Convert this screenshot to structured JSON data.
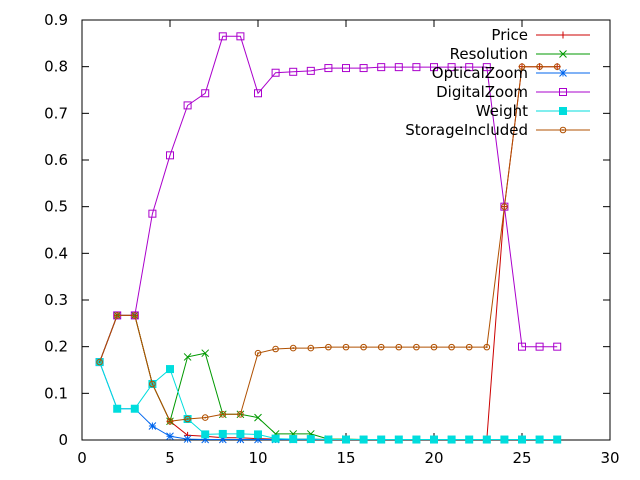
{
  "chart_data": {
    "type": "line",
    "title": "",
    "xlabel": "",
    "ylabel": "",
    "xlim": [
      0,
      30
    ],
    "ylim": [
      0,
      0.9
    ],
    "x_ticks": [
      "0",
      "5",
      "10",
      "15",
      "20",
      "25",
      "30"
    ],
    "y_ticks": [
      "0",
      "0.1",
      "0.2",
      "0.3",
      "0.4",
      "0.5",
      "0.6",
      "0.7",
      "0.8",
      "0.9"
    ],
    "grid": false,
    "legend_position": "top-right",
    "x": [
      1,
      2,
      3,
      4,
      5,
      6,
      7,
      8,
      9,
      10,
      11,
      12,
      13,
      14,
      15,
      16,
      17,
      18,
      19,
      20,
      21,
      22,
      23,
      24,
      25,
      26,
      27
    ],
    "series": [
      {
        "name": "Price",
        "color": "#cc0000",
        "marker": "plus",
        "values": [
          0.167,
          0.267,
          0.267,
          0.12,
          0.04,
          0.01,
          0.008,
          0.005,
          0.005,
          0.003,
          0.002,
          0.002,
          0.002,
          0.001,
          0.001,
          0.001,
          0.001,
          0.001,
          0.001,
          0.001,
          0.001,
          0.001,
          0.001,
          0.5,
          0.8,
          0.8,
          0.8
        ]
      },
      {
        "name": "Resolution",
        "color": "#009900",
        "marker": "cross",
        "values": [
          0.167,
          0.267,
          0.267,
          0.12,
          0.04,
          0.178,
          0.186,
          0.055,
          0.055,
          0.048,
          0.013,
          0.013,
          0.013,
          0.002,
          0.002,
          0.001,
          0.001,
          0.001,
          0.001,
          0.001,
          0.001,
          0.001,
          0.001,
          0.001,
          0.001,
          0.001,
          0.001
        ]
      },
      {
        "name": "OpticalZoom",
        "color": "#0066ee",
        "marker": "star",
        "values": [
          0.167,
          0.067,
          0.067,
          0.03,
          0.008,
          0.002,
          0.001,
          0.001,
          0.001,
          0.001,
          0.001,
          0.001,
          0.001,
          0.001,
          0.001,
          0.001,
          0.001,
          0.001,
          0.001,
          0.001,
          0.001,
          0.001,
          0.001,
          0.001,
          0.001,
          0.001,
          0.001
        ]
      },
      {
        "name": "DigitalZoom",
        "color": "#aa00cc",
        "marker": "square-open",
        "values": [
          0.167,
          0.267,
          0.267,
          0.485,
          0.61,
          0.717,
          0.743,
          0.865,
          0.865,
          0.743,
          0.787,
          0.789,
          0.791,
          0.797,
          0.797,
          0.797,
          0.799,
          0.799,
          0.799,
          0.799,
          0.799,
          0.799,
          0.799,
          0.5,
          0.2,
          0.2,
          0.2
        ]
      },
      {
        "name": "Weight",
        "color": "#00dddd",
        "marker": "square-filled",
        "values": [
          0.167,
          0.067,
          0.067,
          0.12,
          0.152,
          0.045,
          0.012,
          0.013,
          0.013,
          0.012,
          0.003,
          0.002,
          0.002,
          0.001,
          0.001,
          0.001,
          0.001,
          0.001,
          0.001,
          0.001,
          0.001,
          0.001,
          0.001,
          0.001,
          0.001,
          0.001,
          0.001
        ]
      },
      {
        "name": "StorageIncluded",
        "color": "#b05000",
        "marker": "circle-dot",
        "values": [
          0.167,
          0.267,
          0.267,
          0.12,
          0.04,
          0.045,
          0.048,
          0.055,
          0.055,
          0.186,
          0.195,
          0.197,
          0.197,
          0.199,
          0.199,
          0.199,
          0.199,
          0.199,
          0.199,
          0.199,
          0.199,
          0.199,
          0.199,
          0.5,
          0.8,
          0.8,
          0.8
        ]
      }
    ]
  }
}
